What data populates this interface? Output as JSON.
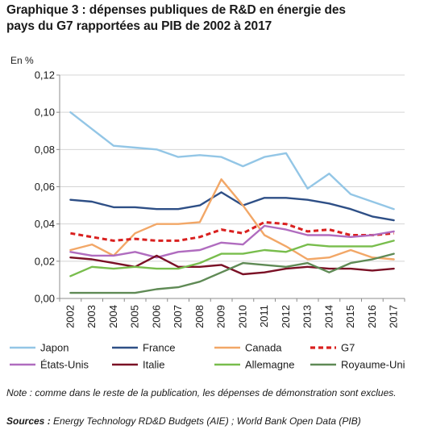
{
  "title_line1": "Graphique 3 : dépenses publiques de R&D en énergie des",
  "title_line2": "pays du G7 rapportées au PIB de 2002 à 2017",
  "note": "Note : comme dans le reste de la publication, les dépenses de démonstration sont exclues.",
  "sources_label": "Sources :",
  "sources_text": " Energy Technology RD&D Budgets (AIE) ; World Bank Open Data (PIB)",
  "chart_data": {
    "type": "line",
    "ylabel": "En %",
    "ylim": [
      0,
      0.12
    ],
    "yticks": [
      "0,00",
      "0,02",
      "0,04",
      "0,06",
      "0,08",
      "0,10",
      "0,12"
    ],
    "grid": true,
    "legend_position": "bottom",
    "categories": [
      "2002",
      "2003",
      "2004",
      "2005",
      "2006",
      "2007",
      "2008",
      "2009",
      "2010",
      "2011",
      "2012",
      "2013",
      "2014",
      "2015",
      "2016",
      "2017"
    ],
    "series": [
      {
        "name": "Japon",
        "color": "#93c6e6",
        "dash": false,
        "values": [
          0.1,
          0.091,
          0.082,
          0.081,
          0.08,
          0.076,
          0.077,
          0.076,
          0.071,
          0.076,
          0.078,
          0.059,
          0.067,
          0.056,
          0.052,
          0.048
        ]
      },
      {
        "name": "France",
        "color": "#2e4f86",
        "dash": false,
        "values": [
          0.053,
          0.052,
          0.049,
          0.049,
          0.048,
          0.048,
          0.05,
          0.057,
          0.05,
          0.054,
          0.054,
          0.053,
          0.051,
          0.048,
          0.044,
          0.042
        ]
      },
      {
        "name": "Canada",
        "color": "#f2a767",
        "dash": false,
        "values": [
          0.026,
          0.029,
          0.023,
          0.035,
          0.04,
          0.04,
          0.041,
          0.064,
          0.05,
          0.034,
          0.028,
          0.021,
          0.022,
          0.026,
          0.022,
          0.021
        ]
      },
      {
        "name": "G7",
        "color": "#d9201f",
        "dash": true,
        "values": [
          0.035,
          0.033,
          0.031,
          0.032,
          0.031,
          0.031,
          0.033,
          0.037,
          0.035,
          0.041,
          0.04,
          0.036,
          0.037,
          0.034,
          0.034,
          0.035
        ]
      },
      {
        "name": "États-Unis",
        "color": "#b06cbf",
        "dash": false,
        "values": [
          0.025,
          0.023,
          0.023,
          0.025,
          0.022,
          0.025,
          0.026,
          0.03,
          0.029,
          0.039,
          0.037,
          0.034,
          0.034,
          0.033,
          0.034,
          0.036
        ]
      },
      {
        "name": "Italie",
        "color": "#7a1025",
        "dash": false,
        "values": [
          0.022,
          0.021,
          0.019,
          0.017,
          0.023,
          0.017,
          0.017,
          0.018,
          0.013,
          0.014,
          0.016,
          0.017,
          0.016,
          0.016,
          0.015,
          0.016
        ]
      },
      {
        "name": "Allemagne",
        "color": "#78bd4c",
        "dash": false,
        "values": [
          0.012,
          0.017,
          0.016,
          0.017,
          0.016,
          0.016,
          0.019,
          0.024,
          0.024,
          0.026,
          0.025,
          0.029,
          0.028,
          0.028,
          0.028,
          0.031
        ]
      },
      {
        "name": "Royaume-Uni",
        "color": "#5f8a55",
        "dash": false,
        "values": [
          0.003,
          0.003,
          0.003,
          0.003,
          0.005,
          0.006,
          0.009,
          0.014,
          0.019,
          0.018,
          0.017,
          0.019,
          0.014,
          0.019,
          0.021,
          0.024
        ]
      }
    ]
  }
}
